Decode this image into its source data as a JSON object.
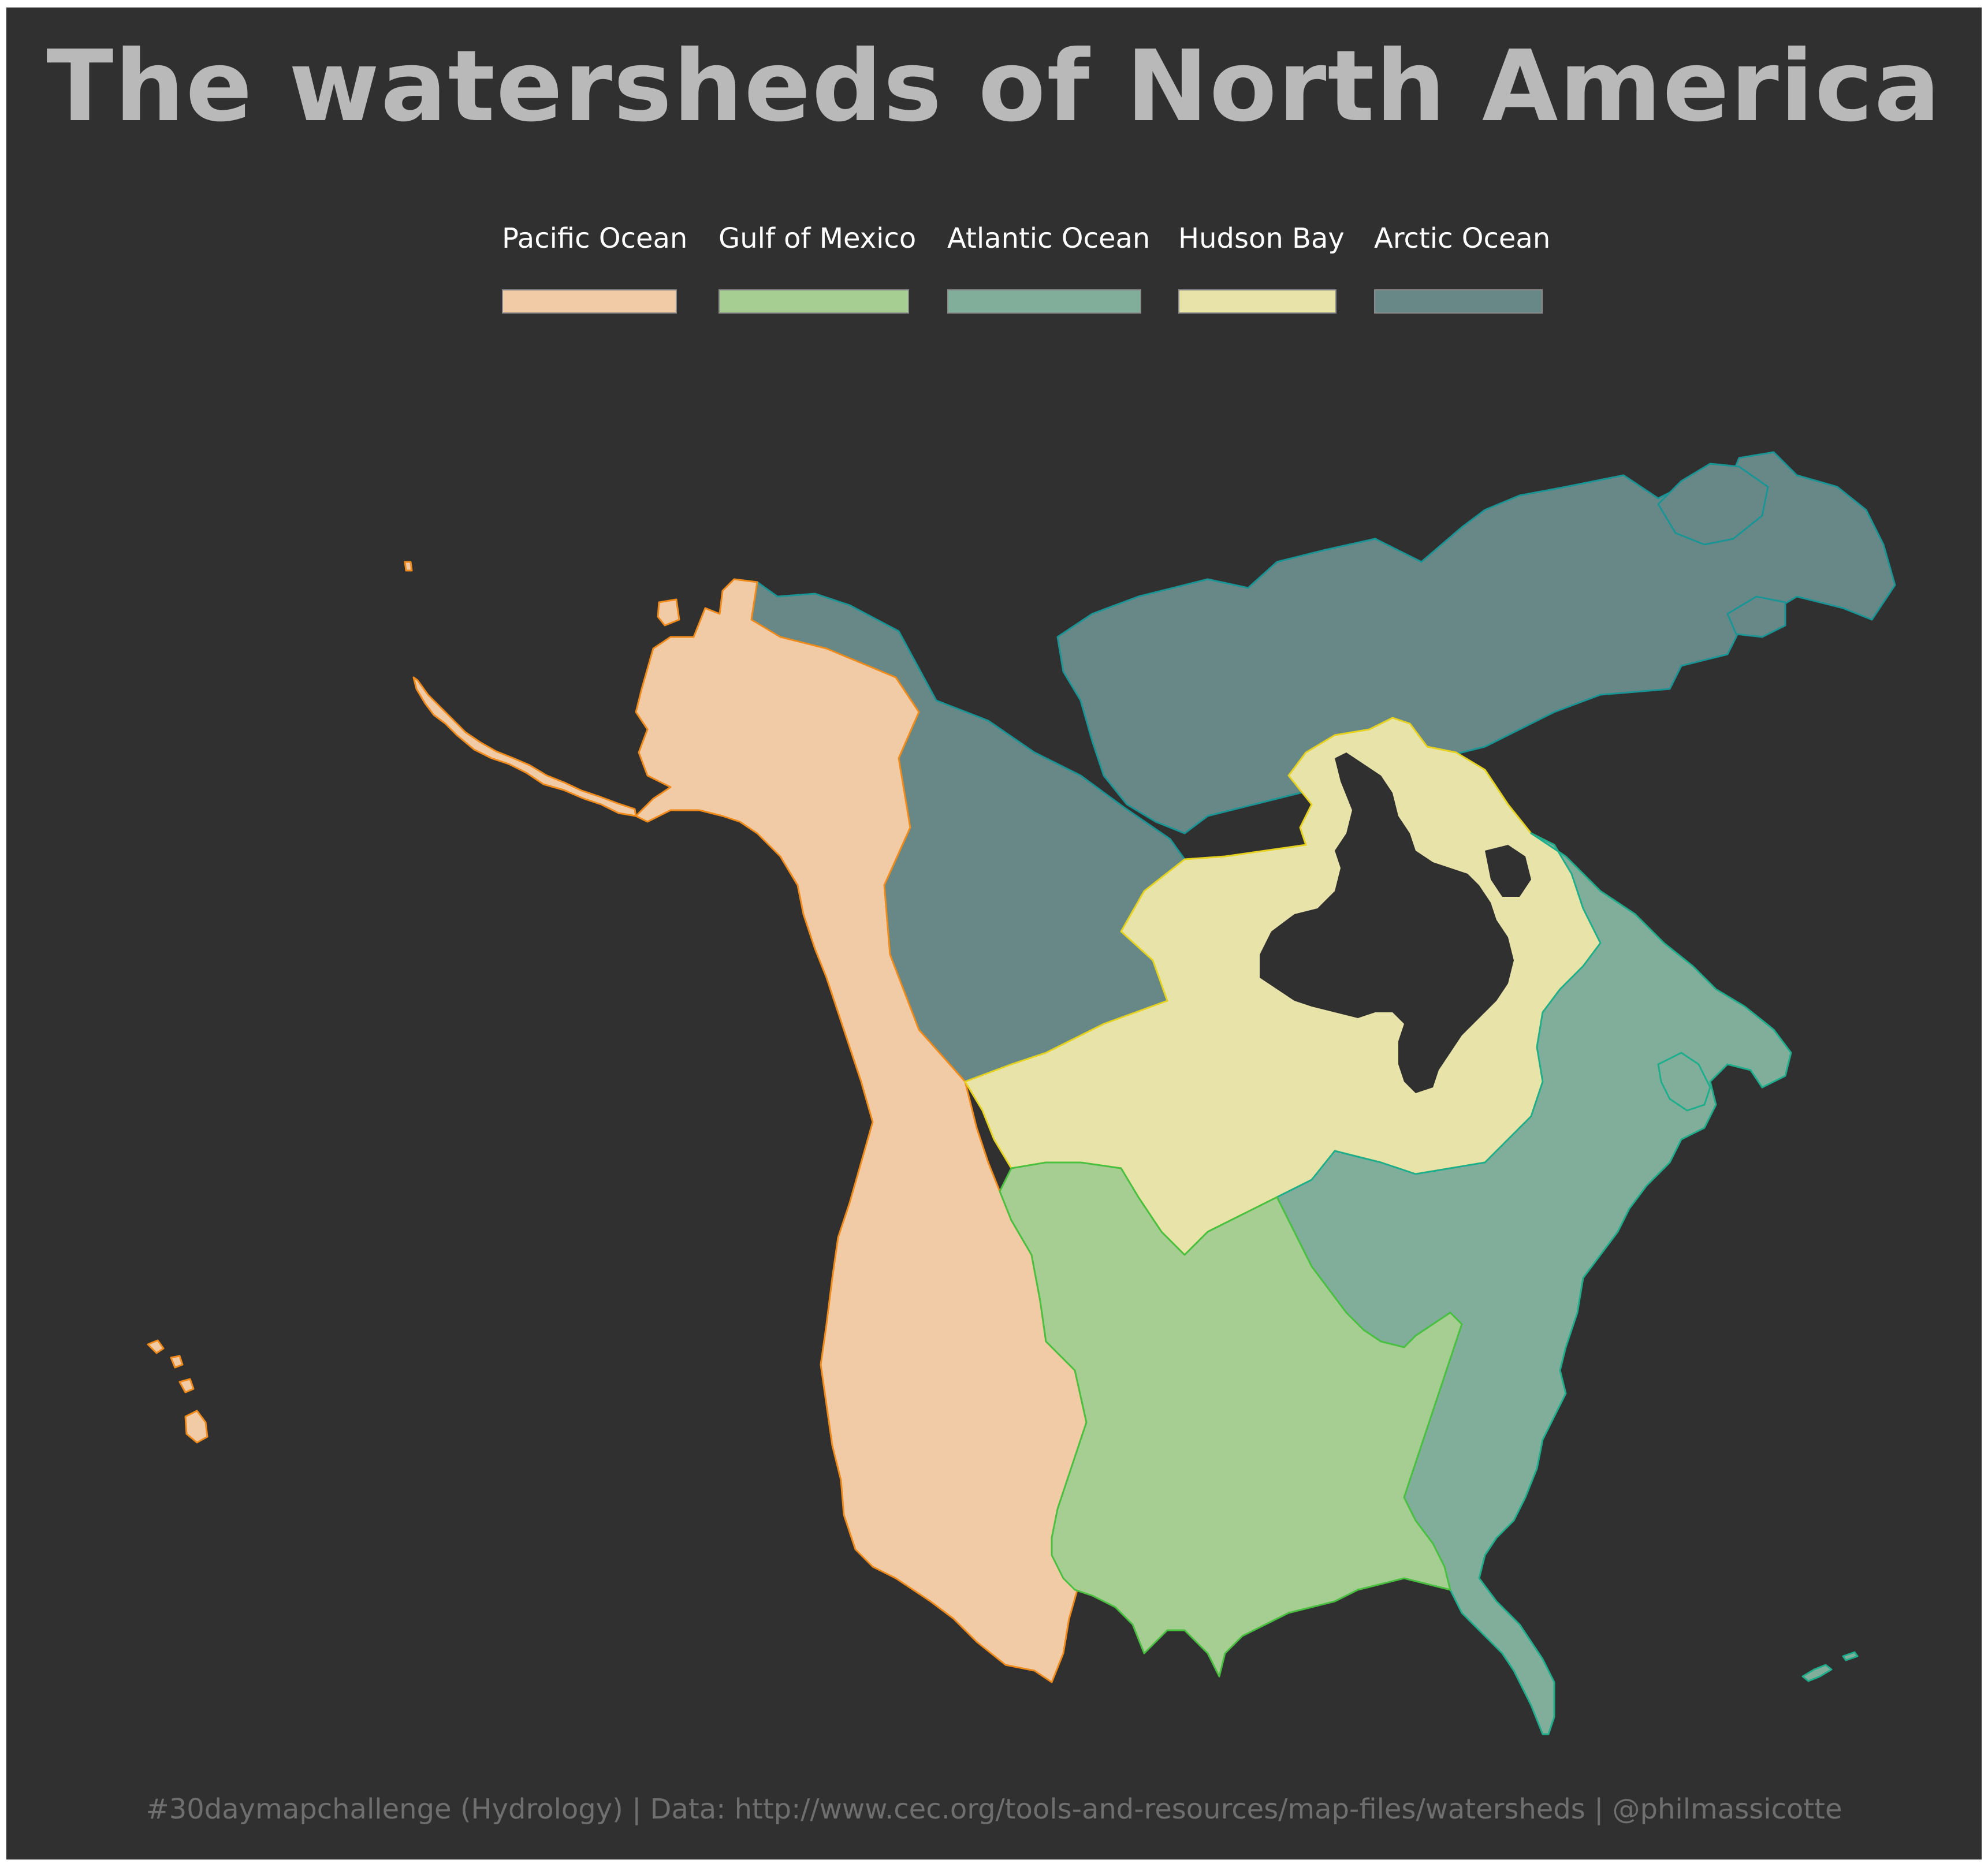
{
  "title": "The watersheds of North America",
  "legend": [
    {
      "label": "Pacific Ocean",
      "color": "#f1cba5",
      "stroke": "#f08a1a"
    },
    {
      "label": "Gulf of Mexico",
      "color": "#a6cd92",
      "stroke": "#49c040"
    },
    {
      "label": "Atlantic Ocean",
      "color": "#81ae9b",
      "stroke": "#1fae8c"
    },
    {
      "label": "Hudson Bay",
      "color": "#e8e3a8",
      "stroke": "#e6d21f"
    },
    {
      "label": "Arctic Ocean",
      "color": "#678886",
      "stroke": "#1a9595"
    }
  ],
  "caption": "#30daymapchallenge (Hydrology) | Data: http://www.cec.org/tools-and-resources/map-files/watersheds | @philmassicotte",
  "background_color": "#303030"
}
